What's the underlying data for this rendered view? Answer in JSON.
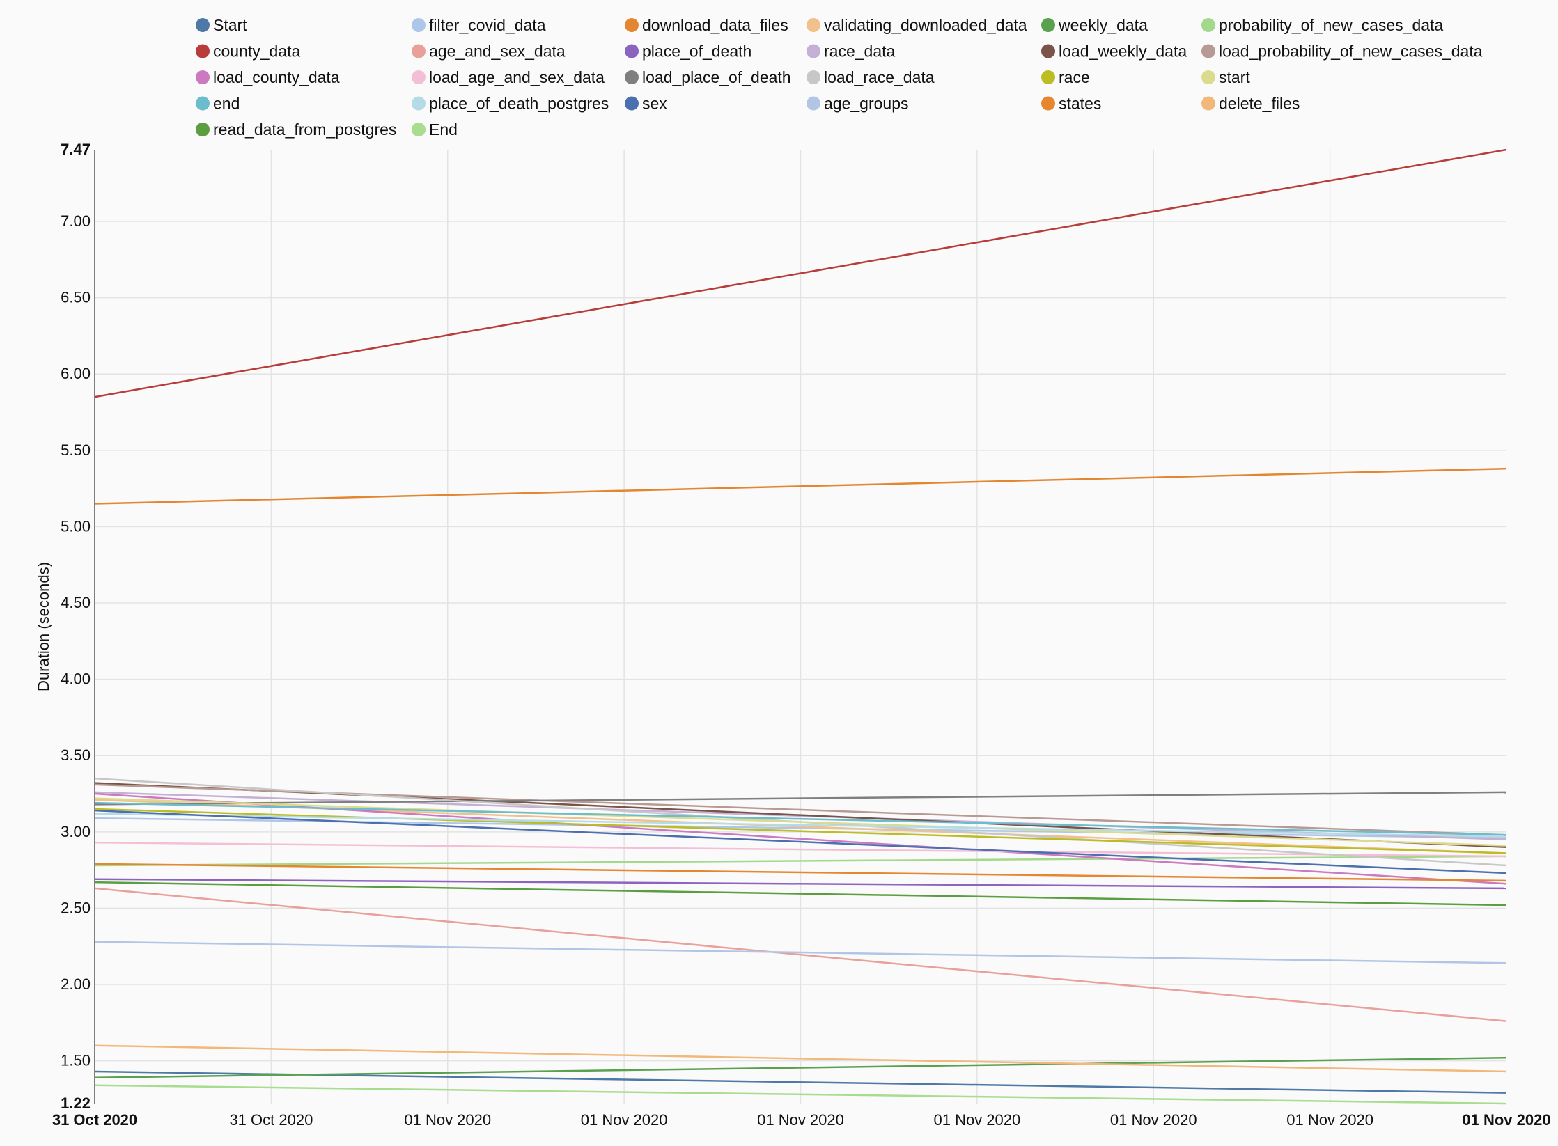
{
  "chart_data": {
    "type": "line",
    "title": "",
    "xlabel": "",
    "ylabel": "Duration (seconds)",
    "ylim": [
      1.22,
      7.47
    ],
    "grid": true,
    "legend_placement": "top",
    "x_tick_labels": [
      "31 Oct 2020",
      "31 Oct 2020",
      "01 Nov 2020",
      "01 Nov 2020",
      "01 Nov 2020",
      "01 Nov 2020",
      "01 Nov 2020",
      "01 Nov 2020",
      "01 Nov 2020"
    ],
    "x_tick_bold": [
      true,
      false,
      false,
      false,
      false,
      false,
      false,
      false,
      true
    ],
    "y_ticks": [
      1.22,
      1.5,
      2.0,
      2.5,
      3.0,
      3.5,
      4.0,
      4.5,
      5.0,
      5.5,
      6.0,
      6.5,
      7.0,
      7.47
    ],
    "y_tick_labels": [
      "1.22",
      "1.50",
      "2.00",
      "2.50",
      "3.00",
      "3.50",
      "4.00",
      "4.50",
      "5.00",
      "5.50",
      "6.00",
      "6.50",
      "7.00",
      "7.47"
    ],
    "y_tick_bold": [
      true,
      false,
      false,
      false,
      false,
      false,
      false,
      false,
      false,
      false,
      false,
      false,
      false,
      true
    ],
    "series": [
      {
        "name": "Start",
        "color": "#4e79a7",
        "values": [
          1.43,
          1.29
        ]
      },
      {
        "name": "filter_covid_data",
        "color": "#aec7e8",
        "values": [
          3.09,
          2.96
        ]
      },
      {
        "name": "download_data_files",
        "color": "#e3862f",
        "values": [
          5.15,
          5.38
        ]
      },
      {
        "name": "validating_downloaded_data",
        "color": "#f1c08b",
        "values": [
          3.21,
          2.86
        ]
      },
      {
        "name": "weekly_data",
        "color": "#59a14f",
        "values": [
          1.39,
          1.52
        ]
      },
      {
        "name": "probability_of_new_cases_data",
        "color": "#a3d98c",
        "values": [
          2.78,
          2.84
        ]
      },
      {
        "name": "county_data",
        "color": "#b83c3a",
        "values": [
          5.85,
          7.47
        ]
      },
      {
        "name": "age_and_sex_data",
        "color": "#e9a09b",
        "values": [
          2.63,
          1.76
        ]
      },
      {
        "name": "place_of_death",
        "color": "#8c64c0",
        "values": [
          2.69,
          2.63
        ]
      },
      {
        "name": "race_data",
        "color": "#c5b0d5",
        "values": [
          3.26,
          2.95
        ]
      },
      {
        "name": "load_weekly_data",
        "color": "#7b5449",
        "values": [
          3.32,
          2.9
        ]
      },
      {
        "name": "load_probability_of_new_cases_data",
        "color": "#b79a94",
        "values": [
          3.31,
          2.98
        ]
      },
      {
        "name": "load_county_data",
        "color": "#cc79c1",
        "values": [
          3.25,
          2.66
        ]
      },
      {
        "name": "load_age_and_sex_data",
        "color": "#f4bfd6",
        "values": [
          2.93,
          2.84
        ]
      },
      {
        "name": "load_place_of_death",
        "color": "#7f7f7f",
        "values": [
          3.18,
          3.26
        ]
      },
      {
        "name": "load_race_data",
        "color": "#c7c7c7",
        "values": [
          3.35,
          2.78
        ]
      },
      {
        "name": "race",
        "color": "#bcbd22",
        "values": [
          3.15,
          2.86
        ]
      },
      {
        "name": "start",
        "color": "#dbdb8d",
        "values": [
          3.22,
          2.91
        ]
      },
      {
        "name": "end",
        "color": "#6bbccc",
        "values": [
          3.19,
          2.98
        ]
      },
      {
        "name": "place_of_death_postgres",
        "color": "#b4dbe6",
        "values": [
          3.12,
          2.97
        ]
      },
      {
        "name": "sex",
        "color": "#4c6faf",
        "values": [
          3.14,
          2.73
        ]
      },
      {
        "name": "age_groups",
        "color": "#b2c5e5",
        "values": [
          2.28,
          2.14
        ]
      },
      {
        "name": "states",
        "color": "#e6862f",
        "values": [
          2.79,
          2.68
        ]
      },
      {
        "name": "delete_files",
        "color": "#f2b87a",
        "values": [
          1.6,
          1.43
        ]
      },
      {
        "name": "read_data_from_postgres",
        "color": "#5a9e40",
        "values": [
          2.67,
          2.52
        ]
      },
      {
        "name": "End",
        "color": "#a8dc8f",
        "values": [
          1.34,
          1.22
        ]
      }
    ]
  }
}
